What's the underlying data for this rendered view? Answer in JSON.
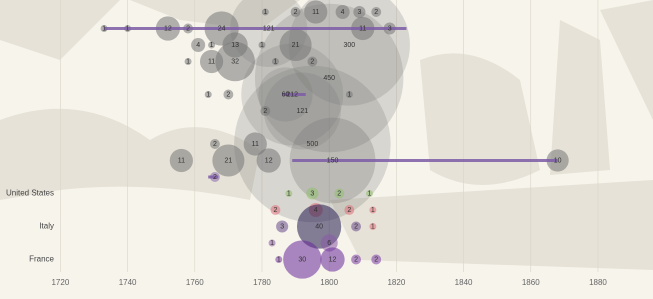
{
  "chart_data": {
    "type": "bubble",
    "xlim": [
      1705,
      1894
    ],
    "xticks": [
      1720,
      1740,
      1760,
      1780,
      1800,
      1820,
      1840,
      1860,
      1880
    ],
    "grid": true,
    "rows": [
      null,
      null,
      null,
      null,
      null,
      null,
      null,
      null,
      null,
      null,
      null,
      "United States",
      null,
      "Italy",
      null,
      "France"
    ],
    "bubbles": [
      {
        "x": 1800,
        "row": 4,
        "size": 450,
        "color": "#6e6e6e"
      },
      {
        "x": 1795,
        "row": 8,
        "size": 500,
        "color": "#6e6e6e"
      },
      {
        "x": 1806,
        "row": 2,
        "size": 300,
        "color": "#6e6e6e"
      },
      {
        "x": 1801,
        "row": 9,
        "size": 150,
        "color": "#555555"
      },
      {
        "x": 1787,
        "row": 5,
        "size": 60,
        "color": "#6e6e6e"
      },
      {
        "x": 1868,
        "row": 9,
        "size": 10,
        "color": "#777777"
      },
      {
        "x": 1781,
        "row": 0,
        "size": 1,
        "color": "#777777"
      },
      {
        "x": 1790,
        "row": 0,
        "size": 2,
        "color": "#777777"
      },
      {
        "x": 1796,
        "row": 0,
        "size": 11,
        "color": "#777777"
      },
      {
        "x": 1804,
        "row": 0,
        "size": 4,
        "color": "#777777"
      },
      {
        "x": 1809,
        "row": 0,
        "size": 3,
        "color": "#777777"
      },
      {
        "x": 1814,
        "row": 0,
        "size": 2,
        "color": "#777777"
      },
      {
        "x": 1733,
        "row": 1,
        "size": 1,
        "color": "#777777"
      },
      {
        "x": 1752,
        "row": 1,
        "size": 12,
        "color": "#777777"
      },
      {
        "x": 1758,
        "row": 1,
        "size": 2,
        "color": "#777777"
      },
      {
        "x": 1768,
        "row": 1,
        "size": 24,
        "color": "#777777"
      },
      {
        "x": 1782,
        "row": 1,
        "size": 121,
        "color": "#777777"
      },
      {
        "x": 1810,
        "row": 1,
        "size": 11,
        "color": "#777777"
      },
      {
        "x": 1818,
        "row": 1,
        "size": 3,
        "color": "#777777"
      },
      {
        "x": 1740,
        "row": 1,
        "size": 1,
        "color": "#777777"
      },
      {
        "x": 1761,
        "row": 2,
        "size": 4,
        "color": "#777777"
      },
      {
        "x": 1765,
        "row": 2,
        "size": 1,
        "color": "#777777"
      },
      {
        "x": 1772,
        "row": 2,
        "size": 13,
        "color": "#777777"
      },
      {
        "x": 1780,
        "row": 2,
        "size": 1,
        "color": "#777777"
      },
      {
        "x": 1790,
        "row": 2,
        "size": 21,
        "color": "#777777"
      },
      {
        "x": 1758,
        "row": 3,
        "size": 1,
        "color": "#777777"
      },
      {
        "x": 1765,
        "row": 3,
        "size": 11,
        "color": "#777777"
      },
      {
        "x": 1772,
        "row": 3,
        "size": 32,
        "color": "#777777"
      },
      {
        "x": 1784,
        "row": 3,
        "size": 1,
        "color": "#777777"
      },
      {
        "x": 1795,
        "row": 3,
        "size": 2,
        "color": "#777777"
      },
      {
        "x": 1764,
        "row": 5,
        "size": 1,
        "color": "#777777"
      },
      {
        "x": 1770,
        "row": 5,
        "size": 2,
        "color": "#777777"
      },
      {
        "x": 1789,
        "row": 5,
        "size": 212,
        "color": "#777777"
      },
      {
        "x": 1806,
        "row": 5,
        "size": 1,
        "color": "#777777"
      },
      {
        "x": 1781,
        "row": 6,
        "size": 2,
        "color": "#777777"
      },
      {
        "x": 1792,
        "row": 6,
        "size": 121,
        "color": "#777777"
      },
      {
        "x": 1766,
        "row": 8,
        "size": 2,
        "color": "#777777"
      },
      {
        "x": 1778,
        "row": 8,
        "size": 11,
        "color": "#777777"
      },
      {
        "x": 1756,
        "row": 9,
        "size": 11,
        "color": "#777777"
      },
      {
        "x": 1770,
        "row": 9,
        "size": 21,
        "color": "#777777"
      },
      {
        "x": 1782,
        "row": 9,
        "size": 12,
        "color": "#777777"
      },
      {
        "x": 1766,
        "row": 10,
        "size": 2,
        "color": "#8a6aaf"
      },
      {
        "x": 1788,
        "row": 11,
        "size": 1,
        "color": "#8fbf6a"
      },
      {
        "x": 1795,
        "row": 11,
        "size": 3,
        "color": "#8fbf6a"
      },
      {
        "x": 1803,
        "row": 11,
        "size": 2,
        "color": "#8fbf6a"
      },
      {
        "x": 1812,
        "row": 11,
        "size": 1,
        "color": "#8fbf6a"
      },
      {
        "x": 1784,
        "row": 12,
        "size": 2,
        "color": "#e0707a"
      },
      {
        "x": 1796,
        "row": 12,
        "size": 4,
        "color": "#e0707a"
      },
      {
        "x": 1806,
        "row": 12,
        "size": 2,
        "color": "#e0707a"
      },
      {
        "x": 1813,
        "row": 12,
        "size": 1,
        "color": "#e0707a"
      },
      {
        "x": 1786,
        "row": 13,
        "size": 3,
        "color": "#6a4a8a"
      },
      {
        "x": 1797,
        "row": 13,
        "size": 40,
        "color": "#221a4e"
      },
      {
        "x": 1808,
        "row": 13,
        "size": 2,
        "color": "#6a4a8a"
      },
      {
        "x": 1813,
        "row": 13,
        "size": 1,
        "color": "#e0707a"
      },
      {
        "x": 1783,
        "row": 14,
        "size": 1,
        "color": "#8a5aa6"
      },
      {
        "x": 1800,
        "row": 14,
        "size": 6,
        "color": "#8a5aa6"
      },
      {
        "x": 1785,
        "row": 15,
        "size": 1,
        "color": "#7a3aa6"
      },
      {
        "x": 1792,
        "row": 15,
        "size": 30,
        "color": "#6a2a9a"
      },
      {
        "x": 1801,
        "row": 15,
        "size": 12,
        "color": "#6a2a9a"
      },
      {
        "x": 1808,
        "row": 15,
        "size": 2,
        "color": "#7a3aa6"
      },
      {
        "x": 1814,
        "row": 15,
        "size": 2,
        "color": "#7a3aa6"
      }
    ],
    "ranges": [
      {
        "row": 1,
        "start": 1733,
        "end": 1823,
        "color": "#7b5aa6"
      },
      {
        "row": 9,
        "start": 1789,
        "end": 1868,
        "color": "#7b5aa6"
      },
      {
        "row": 5,
        "start": 1786,
        "end": 1793,
        "color": "#7b5aa6"
      },
      {
        "row": 10,
        "start": 1764,
        "end": 1767,
        "color": "#7b5aa6"
      }
    ]
  }
}
